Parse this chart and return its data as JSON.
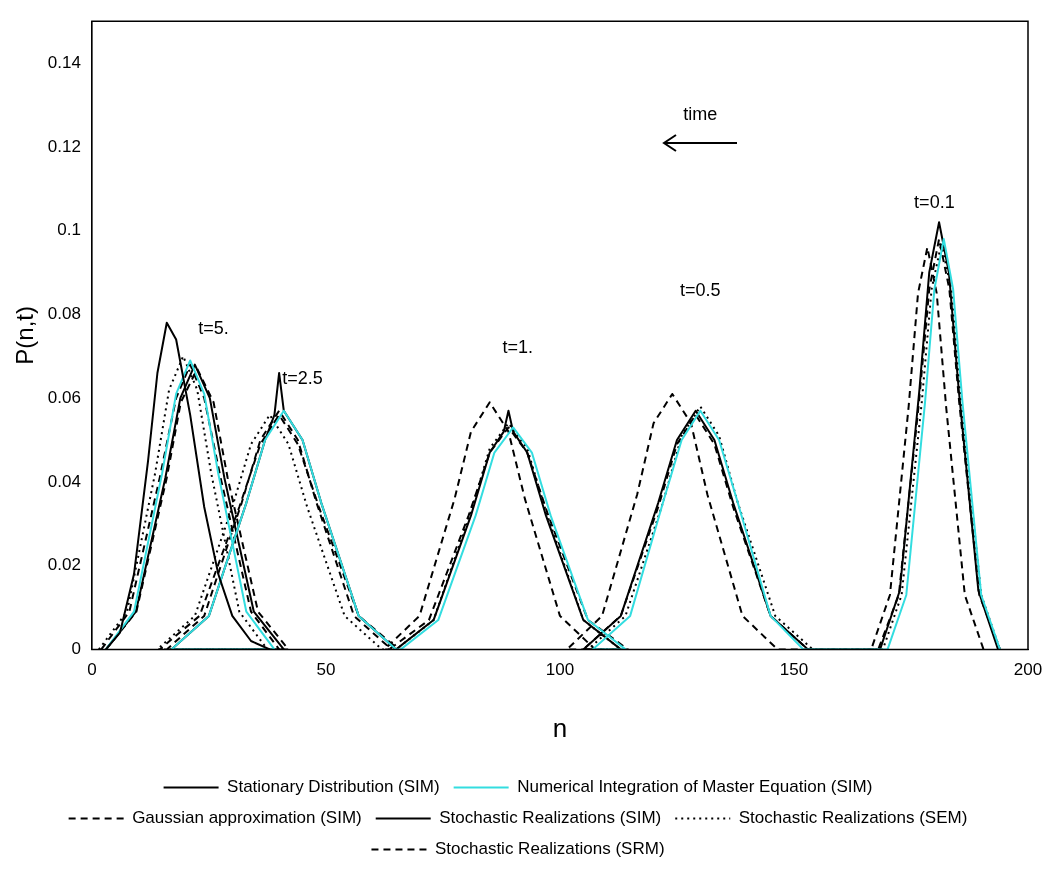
{
  "chart_data": {
    "type": "line",
    "xlabel": "n",
    "ylabel": "P(n,t)",
    "xlim": [
      0,
      200
    ],
    "xticks": [
      0,
      50,
      100,
      150,
      200
    ],
    "ylim": [
      0,
      0.15
    ],
    "yticks": [
      0,
      0.02,
      0.04,
      0.06,
      0.08,
      0.1,
      0.12,
      0.14
    ],
    "grid": false,
    "legend": "bottom",
    "marker": "none",
    "annotations": [
      "time",
      "t=0.1",
      "t=0.5",
      "t=1.",
      "t=2.5",
      "t=5."
    ],
    "series": [
      {
        "name": "Stationary Distribution (SIM)",
        "color": "#000000",
        "line_style": "solid",
        "x": [
          3,
          6,
          9,
          12,
          14,
          16,
          18,
          21,
          24,
          27,
          30,
          34,
          38
        ],
        "values": [
          0,
          0.004,
          0.018,
          0.045,
          0.066,
          0.078,
          0.074,
          0.056,
          0.034,
          0.018,
          0.008,
          0.002,
          0
        ]
      },
      {
        "name": "Numerical Integration of Master Equation (SIM)",
        "color": "#33dde0",
        "line_style": "solid",
        "x": [
          3,
          9,
          15,
          18,
          21,
          24,
          27,
          33,
          39,
          17,
          25,
          33,
          37,
          41,
          45,
          49,
          57,
          65,
          66,
          74,
          82,
          86,
          90,
          94,
          98,
          106,
          114,
          107,
          115,
          122,
          126,
          130,
          134,
          138,
          145,
          152,
          170,
          174,
          178,
          180,
          182,
          184,
          186,
          190,
          194
        ],
        "values": [
          0,
          0.009,
          0.042,
          0.061,
          0.069,
          0.061,
          0.042,
          0.009,
          0,
          0,
          0.008,
          0.035,
          0.05,
          0.057,
          0.05,
          0.035,
          0.008,
          0,
          0,
          0.007,
          0.032,
          0.047,
          0.053,
          0.047,
          0.032,
          0.007,
          0,
          0,
          0.008,
          0.035,
          0.05,
          0.057,
          0.05,
          0.035,
          0.008,
          0,
          0,
          0.013,
          0.059,
          0.086,
          0.098,
          0.086,
          0.059,
          0.013,
          0
        ]
      },
      {
        "name": "Gaussian approximation (SIM)",
        "color": "#000000",
        "line_style": "dashed",
        "x": [
          2,
          8,
          14.5,
          18,
          21,
          24,
          27.5,
          34,
          40,
          14.5,
          23,
          31.5,
          36,
          40,
          44,
          48.5,
          57,
          65.5,
          63.5,
          72,
          80.5,
          85,
          89,
          93,
          97.5,
          106,
          114.5,
          105,
          113,
          121,
          125,
          129,
          133,
          137,
          145,
          153,
          168,
          172.4,
          176.7,
          178.9,
          181,
          183.2,
          185.3,
          189.6,
          194
        ],
        "values": [
          0,
          0.009,
          0.041,
          0.06,
          0.068,
          0.06,
          0.041,
          0.009,
          0,
          0,
          0.008,
          0.034,
          0.049,
          0.056,
          0.049,
          0.034,
          0.008,
          0,
          0,
          0.007,
          0.032,
          0.047,
          0.053,
          0.047,
          0.032,
          0.007,
          0,
          0,
          0.008,
          0.034,
          0.049,
          0.056,
          0.049,
          0.034,
          0.008,
          0,
          0,
          0.013,
          0.059,
          0.086,
          0.098,
          0.086,
          0.059,
          0.013,
          0
        ]
      },
      {
        "name": "Stochastic Realizations (SIM)",
        "color": "#000000",
        "line_style": "solid",
        "x": [
          3,
          9.4,
          15.7,
          18.9,
          22,
          25.2,
          28.3,
          34.6,
          41,
          17,
          25,
          33,
          37,
          39,
          40,
          41,
          45,
          49,
          57,
          65,
          65,
          73,
          81,
          85,
          88,
          89,
          90,
          93,
          97,
          105,
          113,
          105,
          113,
          121,
          125,
          129,
          133,
          137,
          145,
          153,
          168.4,
          172.6,
          176.8,
          178.9,
          181,
          183.1,
          185.2,
          189.4,
          193.6
        ],
        "values": [
          0,
          0.009,
          0.041,
          0.06,
          0.068,
          0.06,
          0.041,
          0.009,
          0,
          0,
          0.008,
          0.035,
          0.05,
          0.056,
          0.066,
          0.057,
          0.05,
          0.035,
          0.008,
          0,
          0,
          0.007,
          0.032,
          0.047,
          0.052,
          0.057,
          0.052,
          0.047,
          0.032,
          0.007,
          0,
          0,
          0.008,
          0.035,
          0.05,
          0.057,
          0.05,
          0.035,
          0.008,
          0,
          0,
          0.014,
          0.062,
          0.09,
          0.102,
          0.09,
          0.062,
          0.014,
          0
        ]
      },
      {
        "name": "Stochastic Realizations (SEM)",
        "color": "#000000",
        "line_style": "dotted",
        "x": [
          1.5,
          7.5,
          13.5,
          16.5,
          19.5,
          22.5,
          25.5,
          31.5,
          37.5,
          14,
          22,
          30,
          34,
          38,
          42,
          46,
          54,
          62,
          65,
          73,
          81,
          85,
          89,
          93,
          97,
          105,
          113,
          106,
          114,
          122,
          126,
          130,
          134,
          138,
          146,
          154,
          169,
          173,
          177.3,
          179.4,
          181.5,
          183.6,
          185.7,
          190,
          194
        ],
        "values": [
          0,
          0.009,
          0.042,
          0.062,
          0.07,
          0.062,
          0.042,
          0.009,
          0,
          0,
          0.008,
          0.034,
          0.049,
          0.056,
          0.049,
          0.034,
          0.008,
          0,
          0,
          0.007,
          0.033,
          0.048,
          0.054,
          0.048,
          0.033,
          0.007,
          0,
          0,
          0.008,
          0.035,
          0.051,
          0.058,
          0.051,
          0.035,
          0.008,
          0,
          0,
          0.013,
          0.059,
          0.086,
          0.097,
          0.086,
          0.059,
          0.013,
          0
        ]
      },
      {
        "name": "Stochastic Realizations (SRM)",
        "color": "#000000",
        "line_style": "dashed",
        "x": [
          3,
          9.5,
          16,
          19,
          22.5,
          26,
          29,
          35.5,
          42,
          16,
          24,
          32,
          36,
          40,
          44,
          48,
          56,
          64,
          62.5,
          70,
          77.5,
          81,
          85,
          89,
          92.5,
          100,
          107.5,
          101.5,
          109,
          116.5,
          120,
          124,
          128,
          131.5,
          139,
          146.5,
          166.5,
          170.5,
          174.5,
          176.5,
          178.5,
          180.5,
          182.5,
          186.5,
          190.5
        ],
        "values": [
          0,
          0.009,
          0.041,
          0.059,
          0.067,
          0.059,
          0.041,
          0.009,
          0,
          0,
          0.008,
          0.035,
          0.05,
          0.057,
          0.05,
          0.035,
          0.008,
          0,
          0,
          0.008,
          0.036,
          0.052,
          0.059,
          0.052,
          0.036,
          0.008,
          0,
          0,
          0.008,
          0.037,
          0.054,
          0.061,
          0.054,
          0.037,
          0.008,
          0,
          0,
          0.013,
          0.058,
          0.085,
          0.096,
          0.085,
          0.058,
          0.013,
          0
        ]
      }
    ]
  }
}
